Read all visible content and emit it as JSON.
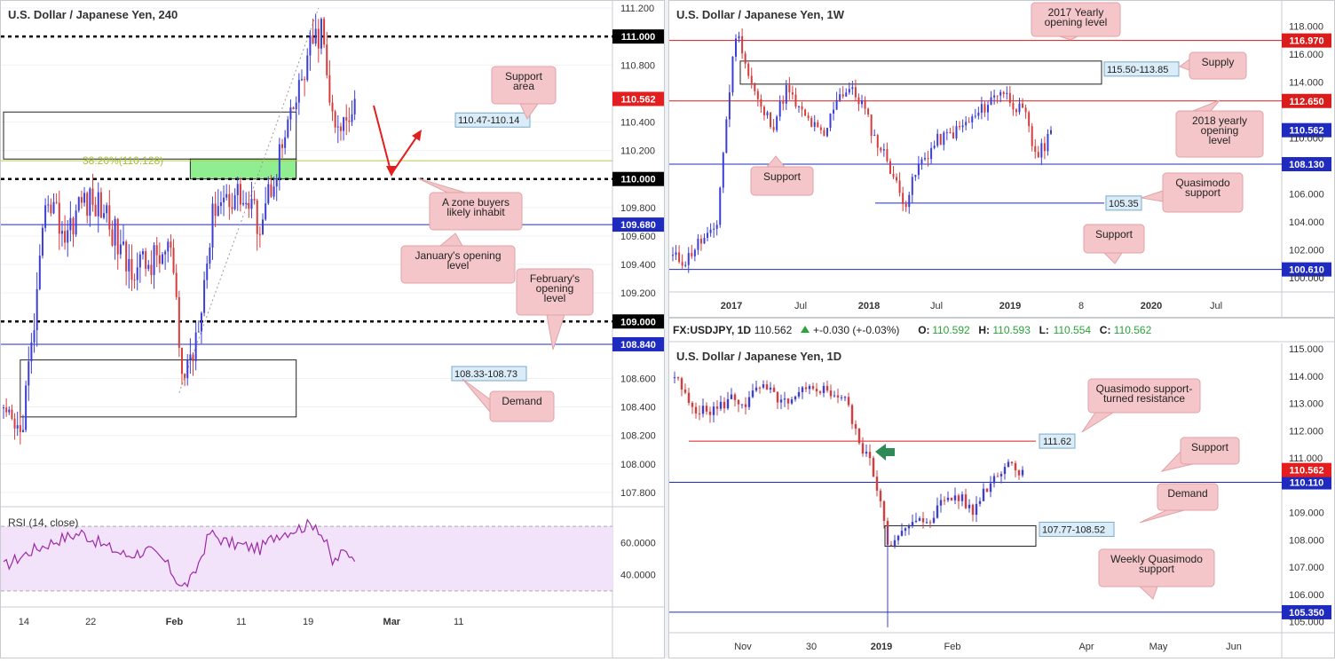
{
  "chart_data": [
    {
      "id": "h4",
      "type": "candlestick",
      "title": "U.S. Dollar / Japanese Yen, 240",
      "ylim": [
        107.7,
        111.25
      ],
      "xlim": [
        0,
        150
      ],
      "x_ticks": [
        {
          "i": 6,
          "label": "14"
        },
        {
          "i": 30,
          "label": "22"
        },
        {
          "i": 60,
          "label": "Feb"
        },
        {
          "i": 84,
          "label": "11"
        },
        {
          "i": 108,
          "label": "19"
        },
        {
          "i": 138,
          "label": "Mar"
        },
        {
          "i": 162,
          "label": "11"
        }
      ],
      "y_ticks": [
        {
          "v": 111.2,
          "label": "111.200"
        },
        {
          "v": 110.8,
          "label": "110.800"
        },
        {
          "v": 110.4,
          "label": "110.400"
        },
        {
          "v": 110.2,
          "label": "110.200"
        },
        {
          "v": 109.8,
          "label": "109.800"
        },
        {
          "v": 109.6,
          "label": "109.600"
        },
        {
          "v": 109.4,
          "label": "109.400"
        },
        {
          "v": 109.2,
          "label": "109.200"
        },
        {
          "v": 108.6,
          "label": "108.600"
        },
        {
          "v": 108.4,
          "label": "108.400"
        },
        {
          "v": 108.2,
          "label": "108.200"
        },
        {
          "v": 108.0,
          "label": "108.000"
        },
        {
          "v": 107.8,
          "label": "107.800"
        }
      ],
      "levels": [
        {
          "v": 111.0,
          "label": "111.000",
          "style": "dotted",
          "color": "#000000"
        },
        {
          "v": 110.0,
          "label": "110.000",
          "style": "dotted",
          "color": "#000000"
        },
        {
          "v": 109.0,
          "label": "109.000",
          "style": "dotted",
          "color": "#000000"
        },
        {
          "v": 109.68,
          "label": "109.680",
          "style": "solid",
          "color": "#1f2bbf"
        },
        {
          "v": 108.84,
          "label": "108.840",
          "style": "solid",
          "color": "#1f2bbf"
        },
        {
          "v": 110.128,
          "label": "",
          "style": "solid",
          "color": "#b7c94a"
        }
      ],
      "last_price": {
        "v": 110.562,
        "label": "110.562",
        "color": "#e31e1e"
      },
      "fib_label": "38.20%(110.128)",
      "zones": [
        {
          "label": "110.47-110.14",
          "top": 110.47,
          "bottom": 110.14,
          "x0": 0,
          "x1": 105,
          "fill": "none"
        },
        {
          "label": "",
          "top": 110.14,
          "bottom": 110.0,
          "x0": 67,
          "x1": 105,
          "fill": "#90ee90"
        },
        {
          "label": "108.33-108.73",
          "top": 108.73,
          "bottom": 108.33,
          "x0": 6,
          "x1": 105,
          "fill": "none"
        }
      ],
      "callouts": [
        {
          "text": [
            "Support",
            "area"
          ]
        },
        {
          "text": [
            "A zone buyers",
            "likely inhabit"
          ]
        },
        {
          "text": [
            "January's opening",
            "level"
          ]
        },
        {
          "text": [
            "February's",
            "opening",
            "level"
          ]
        },
        {
          "text": [
            "Demand"
          ]
        }
      ],
      "rsi": {
        "label": "RSI (14, close)",
        "ticks": [
          {
            "v": 60,
            "label": "60.0000"
          },
          {
            "v": 40,
            "label": "40.0000"
          }
        ],
        "upper": 70,
        "lower": 30
      }
    },
    {
      "id": "w1",
      "type": "candlestick",
      "title": "U.S. Dollar / Japanese Yen, 1W",
      "ylim": [
        99.0,
        119.8
      ],
      "x_ticks": [
        {
          "label": "2017"
        },
        {
          "label": "Jul"
        },
        {
          "label": "2018"
        },
        {
          "label": "Jul"
        },
        {
          "label": "2019"
        },
        {
          "label": "8"
        },
        {
          "label": "2020"
        },
        {
          "label": "Jul"
        }
      ],
      "y_ticks": [
        {
          "v": 118,
          "label": "118.000"
        },
        {
          "v": 116,
          "label": "116.000"
        },
        {
          "v": 114,
          "label": "114.000"
        },
        {
          "v": 110,
          "label": "110.000"
        },
        {
          "v": 106,
          "label": "106.000"
        },
        {
          "v": 104,
          "label": "104.000"
        },
        {
          "v": 102,
          "label": "102.000"
        },
        {
          "v": 100,
          "label": "100.000"
        }
      ],
      "levels": [
        {
          "v": 116.97,
          "label": "116.970",
          "color": "#d91c1c"
        },
        {
          "v": 112.65,
          "label": "112.650",
          "color": "#d91c1c"
        },
        {
          "v": 108.13,
          "label": "108.130",
          "color": "#1f2bbf"
        },
        {
          "v": 100.61,
          "label": "100.610",
          "color": "#1f2bbf"
        },
        {
          "v": 105.35,
          "label": "",
          "color": "#1f2bbf"
        }
      ],
      "last_price": {
        "v": 110.562,
        "label": "110.562",
        "color": "#1f2bbf"
      },
      "zones": [
        {
          "label": "115.50-113.85",
          "top": 115.5,
          "bottom": 113.85
        }
      ],
      "qm_label": "105.35",
      "callouts": [
        {
          "text": [
            "2017 Yearly",
            "opening level"
          ]
        },
        {
          "text": [
            "Supply"
          ]
        },
        {
          "text": [
            "2018 yearly",
            "opening",
            "level"
          ]
        },
        {
          "text": [
            "Support"
          ]
        },
        {
          "text": [
            "Quasimodo",
            "support"
          ]
        },
        {
          "text": [
            "Support"
          ]
        }
      ]
    },
    {
      "id": "d1",
      "type": "candlestick",
      "title": "U.S. Dollar / Japanese Yen, 1D",
      "header": {
        "symbol": "FX:USDJPY, 1D",
        "price": "110.562",
        "change": "+-0.030 (+-0.03%)",
        "o_label": "O:",
        "o": "110.592",
        "h_label": "H:",
        "h": "110.593",
        "l_label": "L:",
        "l": "110.554",
        "c_label": "C:",
        "c": "110.562"
      },
      "ylim": [
        104.6,
        115.2
      ],
      "x_ticks": [
        {
          "label": "Nov"
        },
        {
          "label": "30"
        },
        {
          "label": "2019"
        },
        {
          "label": "Feb"
        },
        {
          "label": "Apr"
        },
        {
          "label": "May"
        },
        {
          "label": "Jun"
        }
      ],
      "y_ticks": [
        {
          "v": 115,
          "label": "115.000"
        },
        {
          "v": 114,
          "label": "114.000"
        },
        {
          "v": 113,
          "label": "113.000"
        },
        {
          "v": 112,
          "label": "112.000"
        },
        {
          "v": 111,
          "label": "111.000"
        },
        {
          "v": 109,
          "label": "109.000"
        },
        {
          "v": 108,
          "label": "108.000"
        },
        {
          "v": 107,
          "label": "107.000"
        },
        {
          "v": 106,
          "label": "106.000"
        },
        {
          "v": 105,
          "label": "105.000"
        }
      ],
      "levels": [
        {
          "v": 111.62,
          "label": "",
          "color": "#d91c1c"
        },
        {
          "v": 110.11,
          "label": "110.110",
          "color": "#1f2bbf"
        },
        {
          "v": 105.35,
          "label": "105.350",
          "color": "#1f2bbf"
        }
      ],
      "res_label": "111.62",
      "last_price": {
        "v": 110.562,
        "label": "110.562",
        "color": "#e31e1e"
      },
      "zones": [
        {
          "label": "107.77-108.52",
          "top": 108.52,
          "bottom": 107.77
        }
      ],
      "callouts": [
        {
          "text": [
            "Quasimodo support-",
            "turned resistance"
          ]
        },
        {
          "text": [
            "Support"
          ]
        },
        {
          "text": [
            "Demand"
          ]
        },
        {
          "text": [
            "Weekly Quasimodo",
            "support"
          ]
        }
      ]
    }
  ]
}
